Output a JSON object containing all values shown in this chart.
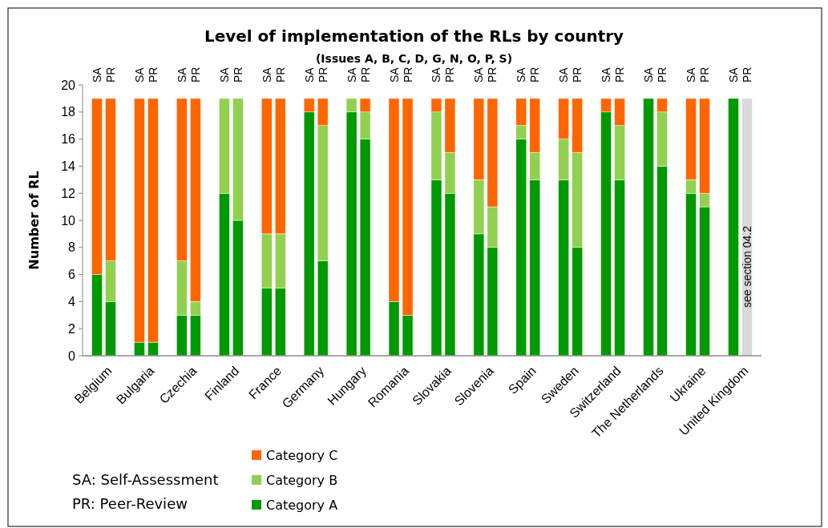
{
  "chart_data": {
    "type": "bar",
    "stacked": true,
    "title": "Level of implementation of the RLs by country",
    "subtitle": "(Issues A, B, C, D, G, N, O, P, S)",
    "ylabel": "Number of RL",
    "categories": [
      "SA",
      "PR",
      "SA",
      "PR",
      "SA",
      "PR",
      "SA",
      "PR",
      "SA",
      "PR",
      "SA",
      "PR",
      "SA",
      "PR",
      "SA",
      "PR",
      "SA",
      "PR",
      "SA",
      "PR",
      "SA",
      "PR",
      "SA",
      "PR",
      "SA",
      "PR",
      "SA",
      "PR",
      "SA",
      "PR",
      "SA",
      "PR"
    ],
    "series": [
      {
        "name": "Category A",
        "color": "#009900",
        "values": [
          6,
          4,
          1,
          1,
          3,
          3,
          12,
          10,
          5,
          5,
          18,
          7,
          18,
          16,
          4,
          3,
          13,
          12,
          9,
          8,
          16,
          13,
          13,
          8,
          18,
          13,
          19,
          14,
          12,
          11,
          19,
          null
        ]
      },
      {
        "name": "Category B",
        "color": "#92d050",
        "values": [
          0,
          3,
          0,
          0,
          4,
          1,
          7,
          9,
          4,
          4,
          0,
          10,
          1,
          2,
          0,
          0,
          5,
          3,
          4,
          3,
          1,
          2,
          3,
          7,
          0,
          4,
          0,
          4,
          1,
          1,
          0,
          null
        ]
      },
      {
        "name": "Category C",
        "color": "#ff6600",
        "values": [
          13,
          12,
          18,
          18,
          12,
          15,
          0,
          0,
          10,
          10,
          1,
          2,
          0,
          1,
          15,
          16,
          1,
          4,
          6,
          8,
          2,
          4,
          3,
          4,
          1,
          2,
          0,
          1,
          6,
          7,
          0,
          null
        ]
      },
      {
        "name": "see section 04.2",
        "color": "#d9d9d9",
        "values": [
          null,
          null,
          null,
          null,
          null,
          null,
          null,
          null,
          null,
          null,
          null,
          null,
          null,
          null,
          null,
          null,
          null,
          null,
          null,
          null,
          null,
          null,
          null,
          null,
          null,
          null,
          null,
          null,
          null,
          null,
          null,
          19
        ]
      }
    ],
    "ylim": [
      0,
      20
    ],
    "yticks": [
      0,
      2,
      4,
      6,
      8,
      10,
      12,
      14,
      16,
      18,
      20
    ],
    "grid": false,
    "legend": "bottom",
    "annotations": [
      "Belgium",
      "Bulgaria",
      "Czechia",
      "Finland",
      "France",
      "Germany",
      "Hungary",
      "Romania",
      "Slovakia",
      "Slovenia",
      "Spain",
      "Sweden",
      "Switzerland",
      "The Netherlands",
      "Ukraine",
      "United Kingdom",
      "SA: Self-Assessment",
      "PR: Peer-Review"
    ]
  }
}
